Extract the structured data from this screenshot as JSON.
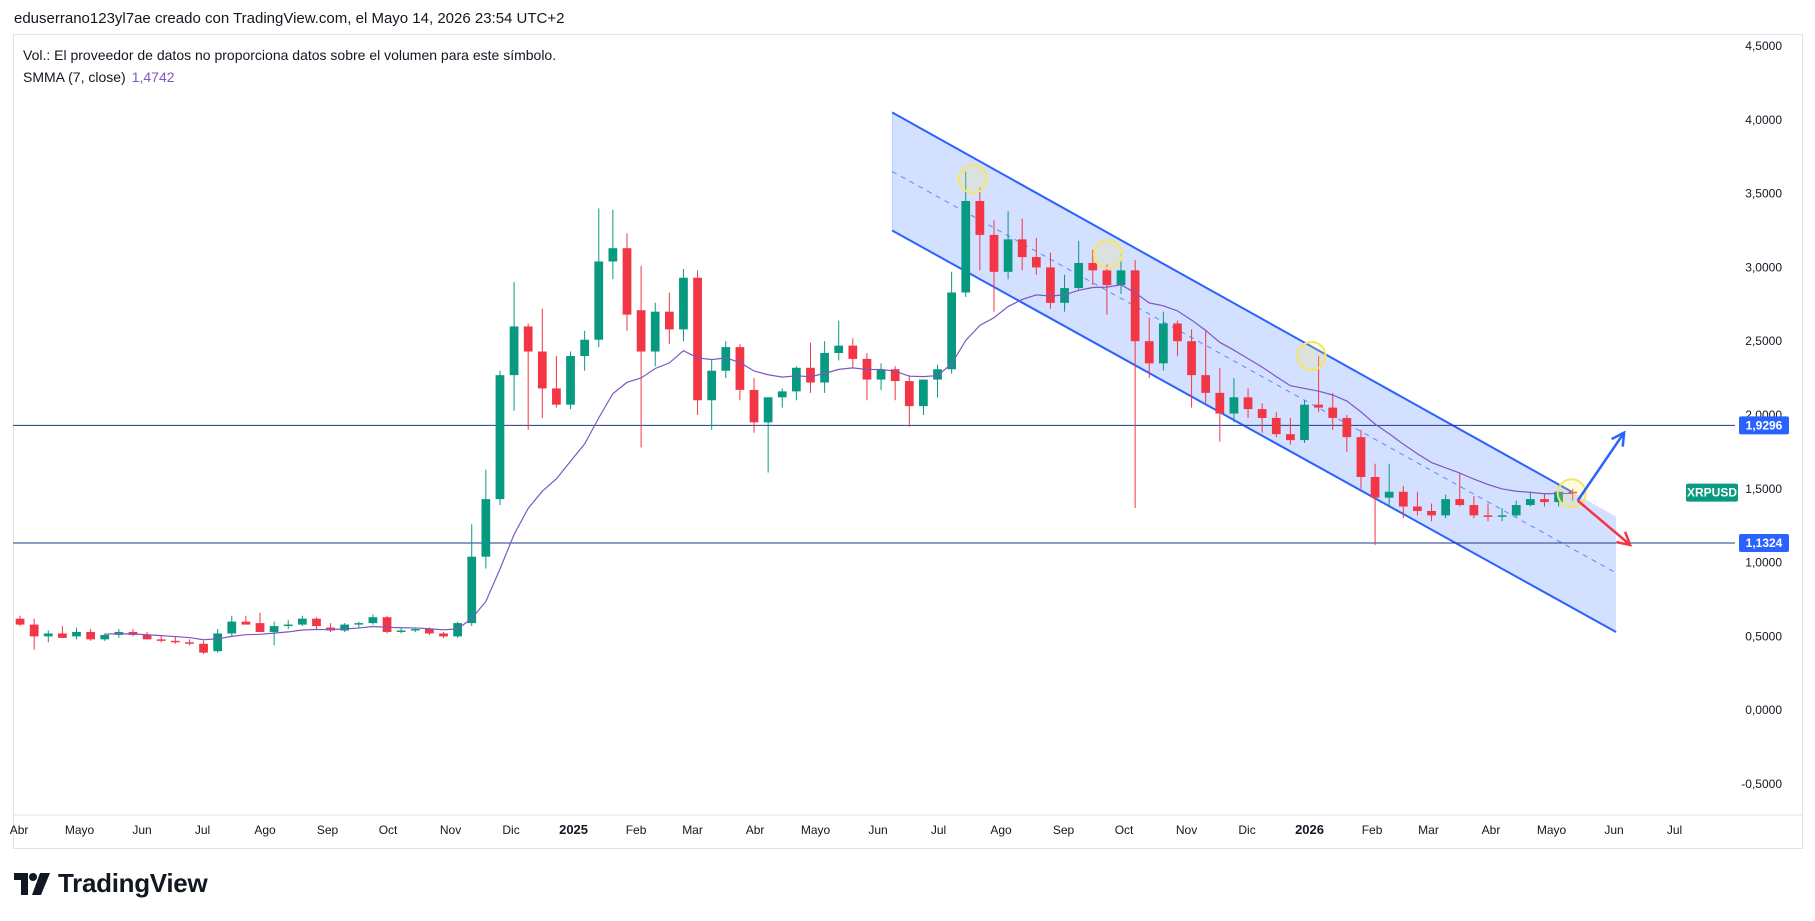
{
  "header": {
    "credit": "eduserrano123yl7ae creado con TradingView.com, el Mayo 14, 2026 23:54 UTC+2"
  },
  "legend": {
    "volume_note": "Vol.: El proveedor de datos no proporciona datos sobre el volumen para este símbolo.",
    "indicator_label": "SMMA (7, close)",
    "indicator_value": "1,4742"
  },
  "brand": {
    "name": "TradingView"
  },
  "colors": {
    "up": "#089981",
    "down": "#f23645",
    "smma": "#7e57c2",
    "channel_line": "#2962ff",
    "channel_fill": "#2962ff",
    "hline": "#1e3a8a",
    "arrow_up": "#2962ff",
    "arrow_down": "#f23645",
    "highlight": "#f5e663",
    "symbol_tag": "#089981",
    "level_tag": "#2962ff"
  },
  "chart_data": {
    "type": "candlestick",
    "symbol": "XRPUSD",
    "timeframe_note": "weekly candles",
    "y_axis": {
      "range": [
        -0.75,
        4.75
      ],
      "ticks": [
        "4,5000",
        "4,0000",
        "3,5000",
        "3,0000",
        "2,5000",
        "2,0000",
        "1,5000",
        "1,0000",
        "0,5000",
        "0,0000",
        "-0,5000"
      ],
      "tick_values": [
        4.5,
        4.0,
        3.5,
        3.0,
        2.5,
        2.0,
        1.5,
        1.0,
        0.5,
        0.0,
        -0.5
      ]
    },
    "x_axis": {
      "labels": [
        {
          "text": "Abr",
          "date": "2024-04-01"
        },
        {
          "text": "Mayo",
          "date": "2024-05-01"
        },
        {
          "text": "Jun",
          "date": "2024-06-01"
        },
        {
          "text": "Jul",
          "date": "2024-07-01"
        },
        {
          "text": "Ago",
          "date": "2024-08-01"
        },
        {
          "text": "Sep",
          "date": "2024-09-01"
        },
        {
          "text": "Oct",
          "date": "2024-10-01"
        },
        {
          "text": "Nov",
          "date": "2024-11-01"
        },
        {
          "text": "Dic",
          "date": "2024-12-01"
        },
        {
          "text": "2025",
          "date": "2025-01-01",
          "bold": true
        },
        {
          "text": "Feb",
          "date": "2025-02-01"
        },
        {
          "text": "Mar",
          "date": "2025-03-01"
        },
        {
          "text": "Abr",
          "date": "2025-04-01"
        },
        {
          "text": "Mayo",
          "date": "2025-05-01"
        },
        {
          "text": "Jun",
          "date": "2025-06-01"
        },
        {
          "text": "Jul",
          "date": "2025-07-01"
        },
        {
          "text": "Ago",
          "date": "2025-08-01"
        },
        {
          "text": "Sep",
          "date": "2025-09-01"
        },
        {
          "text": "Oct",
          "date": "2025-10-01"
        },
        {
          "text": "Nov",
          "date": "2025-11-01"
        },
        {
          "text": "Dic",
          "date": "2025-12-01"
        },
        {
          "text": "2026",
          "date": "2026-01-01",
          "bold": true
        },
        {
          "text": "Feb",
          "date": "2026-02-01"
        },
        {
          "text": "Mar",
          "date": "2026-03-01"
        },
        {
          "text": "Abr",
          "date": "2026-04-01"
        },
        {
          "text": "Mayo",
          "date": "2026-05-01"
        },
        {
          "text": "Jun",
          "date": "2026-06-01"
        },
        {
          "text": "Jul",
          "date": "2026-07-01"
        }
      ],
      "range": [
        "2024-03-29",
        "2026-07-31"
      ]
    },
    "ohlc": [
      [
        "2024-03-29",
        0.62,
        0.64,
        0.57,
        0.58
      ],
      [
        "2024-04-05",
        0.58,
        0.62,
        0.41,
        0.5
      ],
      [
        "2024-04-12",
        0.5,
        0.54,
        0.46,
        0.52
      ],
      [
        "2024-04-19",
        0.52,
        0.57,
        0.49,
        0.49
      ],
      [
        "2024-04-26",
        0.5,
        0.56,
        0.48,
        0.53
      ],
      [
        "2024-05-03",
        0.53,
        0.55,
        0.47,
        0.48
      ],
      [
        "2024-05-10",
        0.48,
        0.52,
        0.47,
        0.51
      ],
      [
        "2024-05-17",
        0.51,
        0.55,
        0.49,
        0.53
      ],
      [
        "2024-05-24",
        0.53,
        0.55,
        0.5,
        0.51
      ],
      [
        "2024-05-31",
        0.51,
        0.53,
        0.48,
        0.48
      ],
      [
        "2024-06-07",
        0.48,
        0.51,
        0.46,
        0.47
      ],
      [
        "2024-06-14",
        0.47,
        0.5,
        0.45,
        0.46
      ],
      [
        "2024-06-21",
        0.46,
        0.48,
        0.44,
        0.45
      ],
      [
        "2024-06-28",
        0.45,
        0.47,
        0.38,
        0.39
      ],
      [
        "2024-07-05",
        0.4,
        0.55,
        0.39,
        0.52
      ],
      [
        "2024-07-12",
        0.52,
        0.64,
        0.5,
        0.6
      ],
      [
        "2024-07-19",
        0.6,
        0.64,
        0.58,
        0.58
      ],
      [
        "2024-07-26",
        0.59,
        0.66,
        0.53,
        0.53
      ],
      [
        "2024-08-02",
        0.53,
        0.6,
        0.44,
        0.57
      ],
      [
        "2024-08-09",
        0.57,
        0.61,
        0.55,
        0.58
      ],
      [
        "2024-08-16",
        0.58,
        0.64,
        0.57,
        0.62
      ],
      [
        "2024-08-23",
        0.62,
        0.63,
        0.55,
        0.57
      ],
      [
        "2024-08-30",
        0.56,
        0.59,
        0.53,
        0.54
      ],
      [
        "2024-09-06",
        0.54,
        0.59,
        0.53,
        0.58
      ],
      [
        "2024-09-13",
        0.58,
        0.6,
        0.56,
        0.59
      ],
      [
        "2024-09-20",
        0.59,
        0.65,
        0.58,
        0.63
      ],
      [
        "2024-09-27",
        0.63,
        0.64,
        0.52,
        0.53
      ],
      [
        "2024-10-04",
        0.53,
        0.56,
        0.52,
        0.54
      ],
      [
        "2024-10-11",
        0.54,
        0.56,
        0.53,
        0.55
      ],
      [
        "2024-10-18",
        0.55,
        0.56,
        0.51,
        0.52
      ],
      [
        "2024-10-25",
        0.52,
        0.53,
        0.49,
        0.5
      ],
      [
        "2024-11-01",
        0.5,
        0.6,
        0.49,
        0.59
      ],
      [
        "2024-11-08",
        0.59,
        1.26,
        0.57,
        1.04
      ],
      [
        "2024-11-15",
        1.04,
        1.63,
        0.96,
        1.43
      ],
      [
        "2024-11-22",
        1.43,
        2.3,
        1.39,
        2.27
      ],
      [
        "2024-11-29",
        2.27,
        2.9,
        2.03,
        2.6
      ],
      [
        "2024-12-06",
        2.6,
        2.62,
        1.9,
        2.43
      ],
      [
        "2024-12-13",
        2.43,
        2.72,
        1.98,
        2.18
      ],
      [
        "2024-12-20",
        2.18,
        2.4,
        2.05,
        2.07
      ],
      [
        "2024-12-27",
        2.07,
        2.43,
        2.04,
        2.4
      ],
      [
        "2025-01-03",
        2.4,
        2.57,
        2.3,
        2.51
      ],
      [
        "2025-01-10",
        2.51,
        3.4,
        2.46,
        3.04
      ],
      [
        "2025-01-17",
        3.04,
        3.39,
        2.92,
        3.13
      ],
      [
        "2025-01-24",
        3.13,
        3.23,
        2.57,
        2.68
      ],
      [
        "2025-01-31",
        2.71,
        3.01,
        1.78,
        2.43
      ],
      [
        "2025-02-07",
        2.43,
        2.76,
        2.33,
        2.7
      ],
      [
        "2025-02-14",
        2.7,
        2.83,
        2.48,
        2.58
      ],
      [
        "2025-02-21",
        2.58,
        2.99,
        2.5,
        2.93
      ],
      [
        "2025-02-28",
        2.93,
        2.98,
        2.0,
        2.1
      ],
      [
        "2025-03-07",
        2.1,
        2.38,
        1.9,
        2.3
      ],
      [
        "2025-03-14",
        2.3,
        2.5,
        2.25,
        2.46
      ],
      [
        "2025-03-21",
        2.46,
        2.48,
        2.1,
        2.17
      ],
      [
        "2025-03-28",
        2.17,
        2.25,
        1.88,
        1.95
      ],
      [
        "2025-04-04",
        1.95,
        2.12,
        1.61,
        2.12
      ],
      [
        "2025-04-11",
        2.12,
        2.18,
        2.05,
        2.16
      ],
      [
        "2025-04-18",
        2.16,
        2.33,
        2.1,
        2.32
      ],
      [
        "2025-04-25",
        2.32,
        2.49,
        2.15,
        2.22
      ],
      [
        "2025-05-02",
        2.22,
        2.5,
        2.15,
        2.42
      ],
      [
        "2025-05-09",
        2.42,
        2.64,
        2.37,
        2.47
      ],
      [
        "2025-05-16",
        2.47,
        2.52,
        2.32,
        2.38
      ],
      [
        "2025-05-23",
        2.38,
        2.42,
        2.1,
        2.24
      ],
      [
        "2025-05-30",
        2.24,
        2.35,
        2.17,
        2.31
      ],
      [
        "2025-06-06",
        2.31,
        2.33,
        2.1,
        2.23
      ],
      [
        "2025-06-13",
        2.23,
        2.27,
        1.92,
        2.06
      ],
      [
        "2025-06-20",
        2.06,
        2.22,
        2.0,
        2.24
      ],
      [
        "2025-06-27",
        2.24,
        2.34,
        2.12,
        2.31
      ],
      [
        "2025-07-04",
        2.31,
        2.97,
        2.28,
        2.83
      ],
      [
        "2025-07-11",
        2.83,
        3.65,
        2.8,
        3.45
      ],
      [
        "2025-07-18",
        3.45,
        3.54,
        2.98,
        3.22
      ],
      [
        "2025-07-25",
        3.22,
        3.32,
        2.7,
        2.97
      ],
      [
        "2025-08-01",
        2.97,
        3.38,
        2.92,
        3.19
      ],
      [
        "2025-08-08",
        3.19,
        3.33,
        2.98,
        3.07
      ],
      [
        "2025-08-15",
        3.07,
        3.2,
        2.95,
        3.0
      ],
      [
        "2025-08-22",
        3.0,
        3.1,
        2.72,
        2.76
      ],
      [
        "2025-08-29",
        2.76,
        2.95,
        2.7,
        2.86
      ],
      [
        "2025-09-05",
        2.86,
        3.18,
        2.85,
        3.03
      ],
      [
        "2025-09-12",
        3.03,
        3.12,
        2.88,
        2.98
      ],
      [
        "2025-09-19",
        2.98,
        3.02,
        2.68,
        2.88
      ],
      [
        "2025-09-26",
        2.88,
        3.09,
        2.82,
        2.98
      ],
      [
        "2025-10-03",
        2.98,
        3.05,
        1.37,
        2.5
      ],
      [
        "2025-10-10",
        2.5,
        2.66,
        2.25,
        2.35
      ],
      [
        "2025-10-17",
        2.35,
        2.7,
        2.3,
        2.62
      ],
      [
        "2025-10-24",
        2.62,
        2.64,
        2.4,
        2.5
      ],
      [
        "2025-10-31",
        2.5,
        2.58,
        2.05,
        2.27
      ],
      [
        "2025-11-07",
        2.27,
        2.58,
        2.08,
        2.15
      ],
      [
        "2025-11-14",
        2.15,
        2.32,
        1.82,
        2.01
      ],
      [
        "2025-11-21",
        2.01,
        2.25,
        1.95,
        2.12
      ],
      [
        "2025-11-28",
        2.12,
        2.18,
        1.98,
        2.04
      ],
      [
        "2025-12-05",
        2.04,
        2.08,
        1.88,
        1.98
      ],
      [
        "2025-12-12",
        1.98,
        2.02,
        1.85,
        1.87
      ],
      [
        "2025-12-19",
        1.87,
        1.98,
        1.8,
        1.83
      ],
      [
        "2025-12-26",
        1.83,
        2.1,
        1.81,
        2.07
      ],
      [
        "2026-01-02",
        2.07,
        2.4,
        2.02,
        2.05
      ],
      [
        "2026-01-09",
        2.05,
        2.15,
        1.9,
        1.98
      ],
      [
        "2026-01-16",
        1.98,
        2.0,
        1.75,
        1.85
      ],
      [
        "2026-01-23",
        1.85,
        1.9,
        1.5,
        1.58
      ],
      [
        "2026-01-30",
        1.58,
        1.67,
        1.12,
        1.44
      ],
      [
        "2026-02-06",
        1.44,
        1.67,
        1.38,
        1.48
      ],
      [
        "2026-02-13",
        1.48,
        1.52,
        1.3,
        1.38
      ],
      [
        "2026-02-20",
        1.38,
        1.48,
        1.32,
        1.35
      ],
      [
        "2026-02-27",
        1.35,
        1.4,
        1.28,
        1.32
      ],
      [
        "2026-03-06",
        1.32,
        1.46,
        1.3,
        1.43
      ],
      [
        "2026-03-13",
        1.43,
        1.61,
        1.38,
        1.39
      ],
      [
        "2026-03-20",
        1.39,
        1.45,
        1.3,
        1.32
      ],
      [
        "2026-03-27",
        1.32,
        1.4,
        1.28,
        1.31
      ],
      [
        "2026-04-03",
        1.31,
        1.37,
        1.28,
        1.32
      ],
      [
        "2026-04-10",
        1.32,
        1.42,
        1.31,
        1.39
      ],
      [
        "2026-04-17",
        1.39,
        1.48,
        1.38,
        1.43
      ],
      [
        "2026-04-24",
        1.43,
        1.47,
        1.38,
        1.41
      ],
      [
        "2026-05-01",
        1.41,
        1.52,
        1.38,
        1.48
      ],
      [
        "2026-05-08",
        1.48,
        1.5,
        1.42,
        1.47
      ]
    ],
    "smma": {
      "period": 7,
      "source": "close",
      "last_value": 1.4742
    },
    "horizontal_levels": [
      {
        "value": 1.9296,
        "label": "1,9296"
      },
      {
        "value": 1.1324,
        "label": "1,1324"
      }
    ],
    "symbol_tag": {
      "value": 1.4742,
      "label": "XRPUSD"
    },
    "channel": {
      "upper": [
        [
          "2025-06-08",
          4.05
        ],
        [
          "2026-05-11",
          1.48
        ]
      ],
      "mid": [
        [
          "2025-06-08",
          3.65
        ],
        [
          "2026-06-02",
          0.93
        ]
      ],
      "lower": [
        [
          "2025-06-08",
          3.25
        ],
        [
          "2026-06-02",
          0.53
        ]
      ],
      "fill_right_date": "2026-06-02"
    },
    "touch_circles": [
      [
        "2025-07-18",
        3.6
      ],
      [
        "2025-09-23",
        3.09
      ],
      [
        "2026-01-02",
        2.4
      ],
      [
        "2026-05-11",
        1.47
      ]
    ],
    "arrows": [
      {
        "direction": "up",
        "from": [
          "2026-05-14",
          1.42
        ],
        "to": [
          "2026-06-06",
          1.88
        ]
      },
      {
        "direction": "down",
        "from": [
          "2026-05-14",
          1.42
        ],
        "to": [
          "2026-06-09",
          1.12
        ]
      }
    ]
  }
}
